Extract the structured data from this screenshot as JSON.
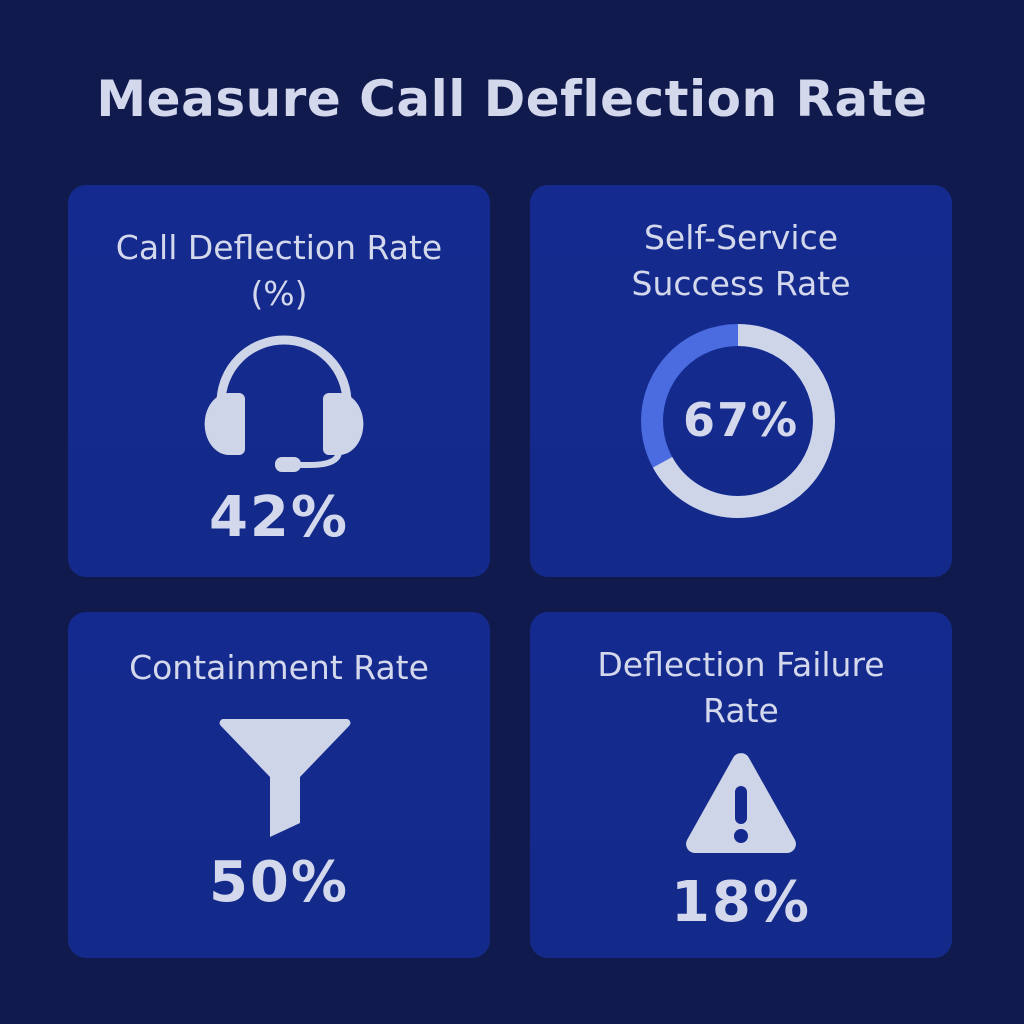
{
  "header": {
    "title": "Measure Call Deflection Rate"
  },
  "cards": [
    {
      "title": [
        "Call Deflection Rate",
        "(%)"
      ],
      "value": "42%"
    },
    {
      "title": [
        "Self-Service",
        "Success Rate"
      ],
      "value": 67,
      "value_label": "67%"
    },
    {
      "title": [
        "Containment Rate"
      ],
      "value": "50%"
    },
    {
      "title": [
        "Deflection Failure",
        "Rate"
      ],
      "value": "18%"
    }
  ]
}
